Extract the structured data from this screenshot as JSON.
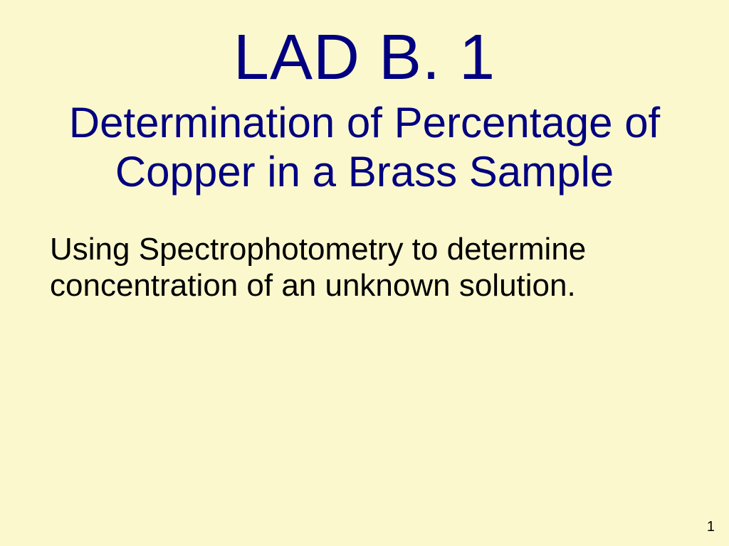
{
  "slide": {
    "title": "LAD B. 1",
    "subtitle": "Determination of Percentage of Copper in a Brass Sample",
    "body": "Using Spectrophotometry to determine concentration of an unknown solution.",
    "page_number": "1"
  },
  "styling": {
    "background_color": "#fbf8ce",
    "title_color": "#000080",
    "subtitle_color": "#000080",
    "body_color": "#000000",
    "page_number_color": "#000000",
    "title_fontsize": 90,
    "subtitle_fontsize": 60,
    "body_fontsize": 44,
    "page_number_fontsize": 20,
    "font_family": "Arial"
  }
}
